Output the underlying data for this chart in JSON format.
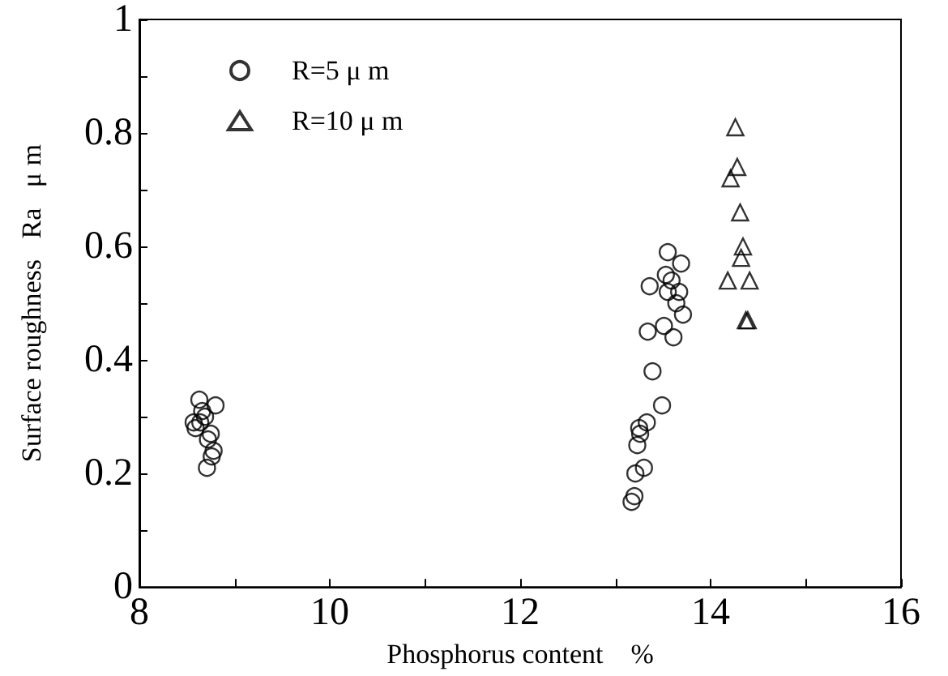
{
  "chart_data": {
    "type": "scatter",
    "xlabel": "Phosphorus content    %",
    "ylabel": "Surface roughness   Ra   μ m",
    "xlim": [
      8,
      16
    ],
    "ylim": [
      0,
      1
    ],
    "xticks": [
      8,
      {
        "value": 9,
        "label": null
      },
      10,
      {
        "value": 11,
        "label": null
      },
      12,
      {
        "value": 13,
        "label": null
      },
      14,
      {
        "value": 15,
        "label": null
      },
      16
    ],
    "yticks": [
      0,
      {
        "value": 0.1,
        "label": null
      },
      0.2,
      {
        "value": 0.3,
        "label": null
      },
      0.4,
      {
        "value": 0.5,
        "label": null
      },
      0.6,
      {
        "value": 0.7,
        "label": null
      },
      0.8,
      {
        "value": 0.9,
        "label": null
      },
      1
    ],
    "grid": false,
    "legend": "top left",
    "series": [
      {
        "name": "R=5 μ m",
        "color": "#000000",
        "marker": "circle",
        "x": [
          8.63,
          8.57,
          8.59,
          8.66,
          8.69,
          8.8,
          8.64,
          8.75,
          8.72,
          8.78,
          8.76,
          8.71,
          13.17,
          13.2,
          13.21,
          13.3,
          13.23,
          13.26,
          13.25,
          13.33,
          13.49,
          13.39,
          13.34,
          13.51,
          13.61,
          13.36,
          13.55,
          13.53,
          13.59,
          13.55,
          13.64,
          13.67,
          13.69,
          13.71
        ],
        "values": [
          0.33,
          0.29,
          0.28,
          0.31,
          0.3,
          0.32,
          0.29,
          0.27,
          0.26,
          0.24,
          0.23,
          0.21,
          0.15,
          0.16,
          0.2,
          0.21,
          0.25,
          0.27,
          0.28,
          0.29,
          0.32,
          0.38,
          0.45,
          0.46,
          0.44,
          0.53,
          0.59,
          0.55,
          0.54,
          0.52,
          0.5,
          0.52,
          0.57,
          0.48
        ]
      },
      {
        "name": "R=10 μ m",
        "color": "#000000",
        "marker": "triangle",
        "x": [
          14.26,
          14.28,
          14.21,
          14.31,
          14.34,
          14.32,
          14.18,
          14.41,
          14.37,
          14.39
        ],
        "values": [
          0.81,
          0.74,
          0.72,
          0.66,
          0.6,
          0.58,
          0.54,
          0.54,
          0.47,
          0.47
        ]
      }
    ]
  }
}
